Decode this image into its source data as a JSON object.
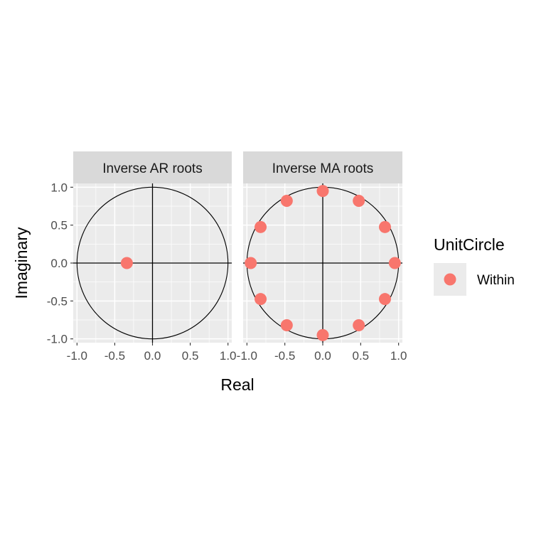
{
  "chart_data": {
    "type": "scatter",
    "xlabel": "Real",
    "ylabel": "Imaginary",
    "xlim": [
      -1.05,
      1.05
    ],
    "ylim": [
      -1.05,
      1.05
    ],
    "x_ticks": [
      "-1.0",
      "-0.5",
      "0.0",
      "0.5",
      "1.0"
    ],
    "y_ticks": [
      "1.0",
      "0.5",
      "0.0",
      "-0.5",
      "-1.0"
    ],
    "tick_values": [
      -1.0,
      -0.5,
      0.0,
      0.5,
      1.0
    ],
    "grid": true,
    "unit_circle": true,
    "legend": {
      "title": "UnitCircle",
      "position": "right",
      "entries": [
        {
          "label": "Within",
          "color": "#F8766D"
        }
      ]
    },
    "panels": [
      {
        "title": "Inverse AR roots",
        "points": [
          {
            "x": -0.34,
            "y": 0.0
          }
        ]
      },
      {
        "title": "Inverse MA roots",
        "points": [
          {
            "x": 0.95,
            "y": 0.0
          },
          {
            "x": 0.82,
            "y": 0.475
          },
          {
            "x": 0.475,
            "y": 0.82
          },
          {
            "x": 0.0,
            "y": 0.95
          },
          {
            "x": -0.475,
            "y": 0.82
          },
          {
            "x": -0.82,
            "y": 0.475
          },
          {
            "x": -0.95,
            "y": 0.0
          },
          {
            "x": -0.82,
            "y": -0.475
          },
          {
            "x": -0.475,
            "y": -0.82
          },
          {
            "x": 0.0,
            "y": -0.95
          },
          {
            "x": 0.475,
            "y": -0.82
          },
          {
            "x": 0.82,
            "y": -0.475
          }
        ]
      }
    ]
  },
  "colors": {
    "point": "#F8766D",
    "panel_background": "#EBEBEB",
    "strip_background": "#D9D9D9",
    "grid": "#FFFFFF",
    "axis_line": "#000000"
  }
}
